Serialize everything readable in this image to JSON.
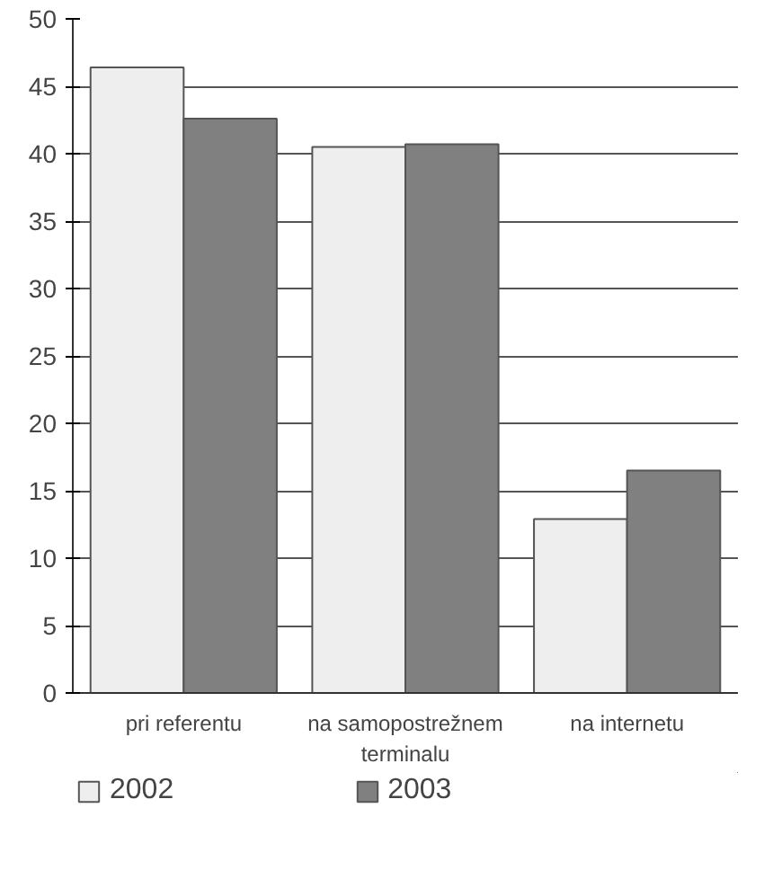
{
  "chart_data": {
    "type": "bar",
    "categories": [
      "pri referentu",
      "na samopostrežnem terminalu",
      "na internetu"
    ],
    "series": [
      {
        "name": "2002",
        "color": "#eeeeee",
        "values": [
          46.4,
          40.5,
          12.9
        ]
      },
      {
        "name": "2003",
        "color": "#808080",
        "values": [
          42.6,
          40.7,
          16.5
        ]
      }
    ],
    "ylim": [
      0,
      50
    ],
    "yticks": [
      0,
      5,
      10,
      15,
      20,
      25,
      30,
      35,
      40,
      45,
      50
    ],
    "grid": "y",
    "legend": "bottom"
  }
}
